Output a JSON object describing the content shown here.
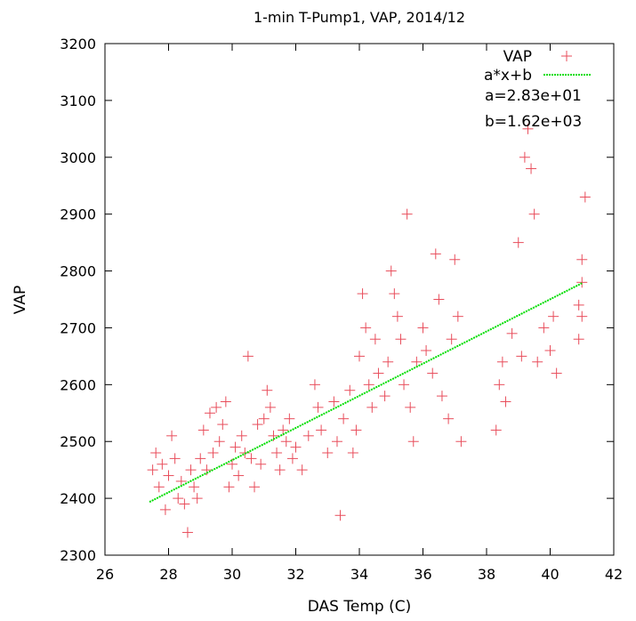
{
  "chart_data": {
    "type": "scatter",
    "title": "1-min T-Pump1, VAP, 2014/12",
    "xlabel": "DAS Temp (C)",
    "ylabel": "VAP",
    "xlim": [
      26,
      42
    ],
    "ylim": [
      2300,
      3200
    ],
    "xticks": [
      "26",
      "28",
      "30",
      "32",
      "34",
      "36",
      "38",
      "40",
      "42"
    ],
    "yticks": [
      "2300",
      "2400",
      "2500",
      "2600",
      "2700",
      "2800",
      "2900",
      "3000",
      "3100",
      "3200"
    ],
    "grid": false,
    "legend_position": "top-right",
    "series": [
      {
        "name": "VAP",
        "color": "#e84d5b",
        "marker": "plus",
        "points": [
          [
            27.5,
            2450
          ],
          [
            27.6,
            2480
          ],
          [
            27.7,
            2420
          ],
          [
            27.8,
            2460
          ],
          [
            27.9,
            2380
          ],
          [
            28.0,
            2440
          ],
          [
            28.1,
            2510
          ],
          [
            28.2,
            2470
          ],
          [
            28.3,
            2400
          ],
          [
            28.4,
            2430
          ],
          [
            28.5,
            2390
          ],
          [
            28.6,
            2340
          ],
          [
            28.7,
            2450
          ],
          [
            28.8,
            2420
          ],
          [
            28.9,
            2400
          ],
          [
            29.0,
            2470
          ],
          [
            29.1,
            2520
          ],
          [
            29.2,
            2450
          ],
          [
            29.3,
            2550
          ],
          [
            29.4,
            2480
          ],
          [
            29.5,
            2560
          ],
          [
            29.6,
            2500
          ],
          [
            29.7,
            2530
          ],
          [
            29.8,
            2570
          ],
          [
            29.9,
            2420
          ],
          [
            30.0,
            2460
          ],
          [
            30.1,
            2490
          ],
          [
            30.2,
            2440
          ],
          [
            30.3,
            2510
          ],
          [
            30.4,
            2480
          ],
          [
            30.5,
            2650
          ],
          [
            30.6,
            2470
          ],
          [
            30.7,
            2420
          ],
          [
            30.8,
            2530
          ],
          [
            30.9,
            2460
          ],
          [
            31.0,
            2540
          ],
          [
            31.1,
            2590
          ],
          [
            31.2,
            2560
          ],
          [
            31.3,
            2510
          ],
          [
            31.4,
            2480
          ],
          [
            31.5,
            2450
          ],
          [
            31.6,
            2520
          ],
          [
            31.7,
            2500
          ],
          [
            31.8,
            2540
          ],
          [
            31.9,
            2470
          ],
          [
            32.0,
            2490
          ],
          [
            32.2,
            2450
          ],
          [
            32.4,
            2510
          ],
          [
            32.6,
            2600
          ],
          [
            32.7,
            2560
          ],
          [
            32.8,
            2520
          ],
          [
            33.0,
            2480
          ],
          [
            33.2,
            2570
          ],
          [
            33.3,
            2500
          ],
          [
            33.4,
            2370
          ],
          [
            33.5,
            2540
          ],
          [
            33.7,
            2590
          ],
          [
            33.8,
            2480
          ],
          [
            33.9,
            2520
          ],
          [
            34.0,
            2650
          ],
          [
            34.1,
            2760
          ],
          [
            34.2,
            2700
          ],
          [
            34.3,
            2600
          ],
          [
            34.4,
            2560
          ],
          [
            34.5,
            2680
          ],
          [
            34.6,
            2620
          ],
          [
            34.8,
            2580
          ],
          [
            34.9,
            2640
          ],
          [
            35.0,
            2800
          ],
          [
            35.1,
            2760
          ],
          [
            35.2,
            2720
          ],
          [
            35.3,
            2680
          ],
          [
            35.4,
            2600
          ],
          [
            35.5,
            2900
          ],
          [
            35.6,
            2560
          ],
          [
            35.7,
            2500
          ],
          [
            35.8,
            2640
          ],
          [
            36.0,
            2700
          ],
          [
            36.1,
            2660
          ],
          [
            36.3,
            2620
          ],
          [
            36.4,
            2830
          ],
          [
            36.5,
            2750
          ],
          [
            36.6,
            2580
          ],
          [
            36.8,
            2540
          ],
          [
            36.9,
            2680
          ],
          [
            37.0,
            2820
          ],
          [
            37.1,
            2720
          ],
          [
            37.2,
            2500
          ],
          [
            38.3,
            2520
          ],
          [
            38.4,
            2600
          ],
          [
            38.5,
            2640
          ],
          [
            38.6,
            2570
          ],
          [
            38.8,
            2690
          ],
          [
            39.0,
            2850
          ],
          [
            39.1,
            2650
          ],
          [
            39.2,
            3000
          ],
          [
            39.3,
            3050
          ],
          [
            39.4,
            2980
          ],
          [
            39.5,
            2900
          ],
          [
            39.6,
            2640
          ],
          [
            39.8,
            2700
          ],
          [
            40.0,
            2660
          ],
          [
            40.1,
            2720
          ],
          [
            40.2,
            2620
          ],
          [
            40.9,
            2680
          ],
          [
            41.0,
            2720
          ],
          [
            41.0,
            2820
          ],
          [
            41.1,
            2930
          ],
          [
            41.0,
            2780
          ],
          [
            40.9,
            2740
          ]
        ]
      },
      {
        "name": "a*x+b",
        "color": "#00dd00",
        "type": "line",
        "x": [
          27.4,
          41.0
        ],
        "y": [
          2393.6,
          2778.5
        ]
      }
    ],
    "annotations": [
      "a=2.83e+01",
      "b=1.62e+03"
    ]
  }
}
